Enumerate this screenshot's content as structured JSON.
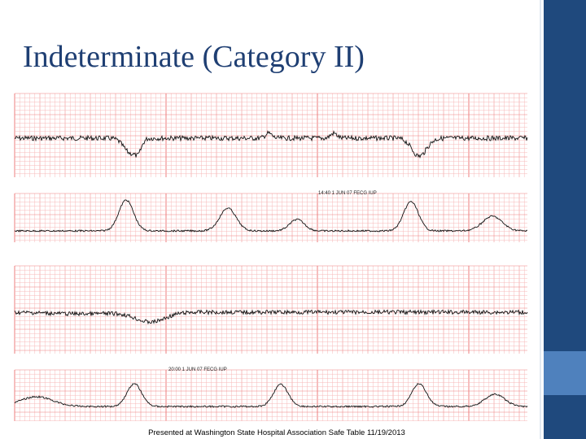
{
  "header": {
    "title": "Indeterminate (Category II)"
  },
  "strips": [
    {
      "annotation": "14:40 1 JUN 07 FECG IUP"
    },
    {
      "annotation": "20:00 1 JUN 07 FECG IUP"
    }
  ],
  "footer": {
    "caption": "Presented at Washington State Hospital Association Safe Table 11/19/2013"
  }
}
